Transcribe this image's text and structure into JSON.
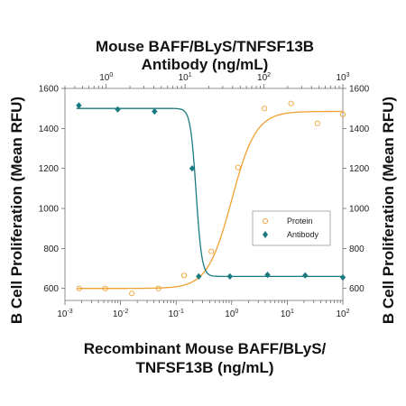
{
  "chart_data": {
    "type": "scatter",
    "title_top_line1": "Mouse BAFF/BLyS/TNFSF13B",
    "title_top_line2": "Antibody (ng/mL)",
    "xlabel_line1": "Recombinant Mouse BAFF/BLyS/",
    "xlabel_line2": "TNFSF13B (ng/mL)",
    "ylabel_left": "B Cell Proliferation (Mean RFU)",
    "ylabel_right": "B Cell Proliferation (Mean RFU)",
    "x_scale": "log",
    "x_bottom_range": [
      0.001,
      100
    ],
    "x_bottom_ticks": [
      {
        "value": 0.001,
        "base": "10",
        "exp": "-3"
      },
      {
        "value": 0.01,
        "base": "10",
        "exp": "-2"
      },
      {
        "value": 0.1,
        "base": "10",
        "exp": "-1"
      },
      {
        "value": 1,
        "base": "10",
        "exp": "0"
      },
      {
        "value": 10,
        "base": "10",
        "exp": "1"
      },
      {
        "value": 100,
        "base": "10",
        "exp": "2"
      }
    ],
    "x_top_range": [
      0.3,
      1000
    ],
    "x_top_ticks": [
      {
        "value": 1,
        "base": "10",
        "exp": "0"
      },
      {
        "value": 10,
        "base": "10",
        "exp": "1"
      },
      {
        "value": 100,
        "base": "10",
        "exp": "2"
      },
      {
        "value": 1000,
        "base": "10",
        "exp": "3"
      }
    ],
    "ylim": [
      540,
      1600
    ],
    "y_ticks": [
      600,
      800,
      1000,
      1200,
      1400,
      1600
    ],
    "grid": false,
    "legend_position": "right",
    "series": [
      {
        "name": "Protein",
        "axis": "bottom",
        "marker": "open-circle",
        "color": "#f0a030",
        "x": [
          0.0018,
          0.0053,
          0.016,
          0.048,
          0.14,
          0.43,
          1.3,
          3.9,
          11.7,
          35,
          100
        ],
        "y": [
          600,
          600,
          575,
          600,
          665,
          785,
          1205,
          1500,
          1525,
          1425,
          1470
        ]
      },
      {
        "name": "Antibody",
        "axis": "top",
        "marker": "filled-diamond",
        "color": "#1a7a80",
        "x": [
          0.45,
          1.4,
          4.1,
          12.3,
          14.9,
          37,
          111,
          333,
          1000
        ],
        "y": [
          1515,
          1495,
          1485,
          1200,
          660,
          660,
          668,
          665,
          655
        ]
      }
    ],
    "fits": [
      {
        "series": "Protein",
        "bottom": 600,
        "top": 1485,
        "ec50": 1.0,
        "hill": 2.0,
        "color": "#f0a030"
      },
      {
        "series": "Antibody",
        "bottom": 660,
        "top": 1500,
        "ec50": 13.8,
        "hill": -12,
        "color": "#1a7a80"
      }
    ]
  }
}
